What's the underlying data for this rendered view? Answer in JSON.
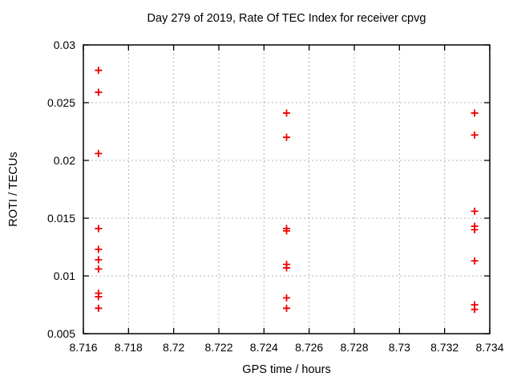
{
  "chart_data": {
    "type": "scatter",
    "title": "Day 279 of 2019, Rate Of TEC Index for receiver cpvg",
    "xlabel": "GPS time / hours",
    "ylabel": "ROTI / TECUs",
    "xlim": [
      8.716,
      8.734
    ],
    "ylim": [
      0.005,
      0.03
    ],
    "grid": true,
    "legend": "none",
    "marker": {
      "shape": "plus",
      "color": "#ee0000",
      "size": 9
    },
    "grid_color": "#b4b4b4",
    "frame_color": "#000000",
    "text_color": "#000000",
    "background_color": "#ffffff",
    "xticks": [
      {
        "value": 8.716,
        "label": "8.716"
      },
      {
        "value": 8.718,
        "label": "8.718"
      },
      {
        "value": 8.72,
        "label": "8.72"
      },
      {
        "value": 8.722,
        "label": "8.722"
      },
      {
        "value": 8.724,
        "label": "8.724"
      },
      {
        "value": 8.726,
        "label": "8.726"
      },
      {
        "value": 8.728,
        "label": "8.728"
      },
      {
        "value": 8.73,
        "label": "8.73"
      },
      {
        "value": 8.732,
        "label": "8.732"
      },
      {
        "value": 8.734,
        "label": "8.734"
      }
    ],
    "yticks": [
      {
        "value": 0.005,
        "label": "0.005"
      },
      {
        "value": 0.01,
        "label": "0.01"
      },
      {
        "value": 0.015,
        "label": "0.015"
      },
      {
        "value": 0.02,
        "label": "0.02"
      },
      {
        "value": 0.025,
        "label": "0.025"
      },
      {
        "value": 0.03,
        "label": "0.03"
      }
    ],
    "points": [
      {
        "x": 8.71667,
        "y": 0.0278
      },
      {
        "x": 8.71667,
        "y": 0.0259
      },
      {
        "x": 8.71667,
        "y": 0.0206
      },
      {
        "x": 8.71667,
        "y": 0.0141
      },
      {
        "x": 8.71667,
        "y": 0.0123
      },
      {
        "x": 8.71667,
        "y": 0.0114
      },
      {
        "x": 8.71667,
        "y": 0.0106
      },
      {
        "x": 8.71667,
        "y": 0.0085
      },
      {
        "x": 8.71667,
        "y": 0.0082
      },
      {
        "x": 8.71667,
        "y": 0.0072
      },
      {
        "x": 8.725,
        "y": 0.0241
      },
      {
        "x": 8.725,
        "y": 0.022
      },
      {
        "x": 8.725,
        "y": 0.0141
      },
      {
        "x": 8.725,
        "y": 0.0139
      },
      {
        "x": 8.725,
        "y": 0.011
      },
      {
        "x": 8.725,
        "y": 0.0107
      },
      {
        "x": 8.725,
        "y": 0.0081
      },
      {
        "x": 8.725,
        "y": 0.0072
      },
      {
        "x": 8.73333,
        "y": 0.0241
      },
      {
        "x": 8.73333,
        "y": 0.0222
      },
      {
        "x": 8.73333,
        "y": 0.0156
      },
      {
        "x": 8.73333,
        "y": 0.0143
      },
      {
        "x": 8.73333,
        "y": 0.014
      },
      {
        "x": 8.73333,
        "y": 0.0113
      },
      {
        "x": 8.73333,
        "y": 0.0075
      },
      {
        "x": 8.73333,
        "y": 0.0071
      }
    ]
  }
}
